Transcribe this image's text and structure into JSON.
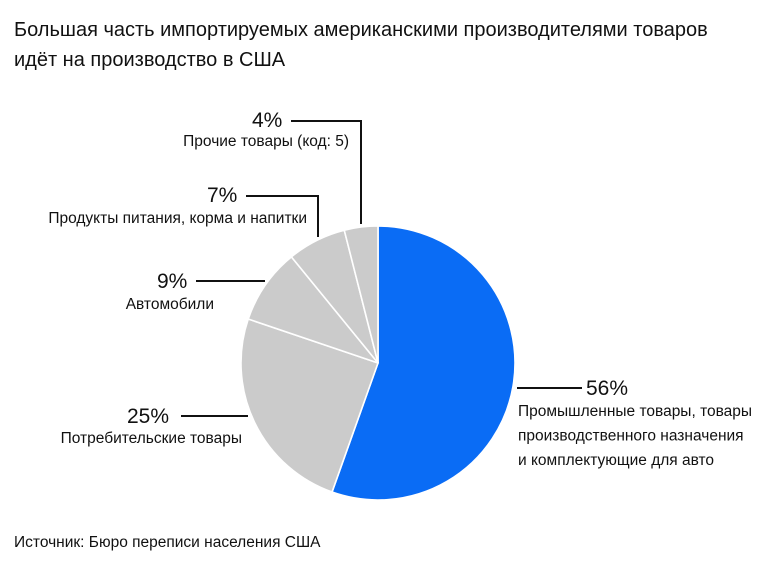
{
  "chart_data": {
    "type": "pie",
    "title": [
      "Большая часть импортируемых американскими производителями товаров",
      "идёт на производство в США"
    ],
    "slices": [
      {
        "label": [
          "Промышленные товары, товары",
          "производственного назначения",
          "и комплектующие для авто"
        ],
        "value": 56,
        "value_label": "56%",
        "color": "#0a6cf5"
      },
      {
        "label": [
          "Потребительские товары"
        ],
        "value": 25,
        "value_label": "25%",
        "color": "#cbcbcb"
      },
      {
        "label": [
          "Автомобили"
        ],
        "value": 9,
        "value_label": "9%",
        "color": "#cbcbcb"
      },
      {
        "label": [
          "Продукты питания, корма и напитки"
        ],
        "value": 7,
        "value_label": "7%",
        "color": "#cbcbcb"
      },
      {
        "label": [
          "Прочие товары (код: 5)"
        ],
        "value": 4,
        "value_label": "4%",
        "color": "#cbcbcb"
      }
    ],
    "start": "12 o'clock",
    "direction": "clockwise",
    "source": "Источник: Бюро переписи населения США"
  }
}
